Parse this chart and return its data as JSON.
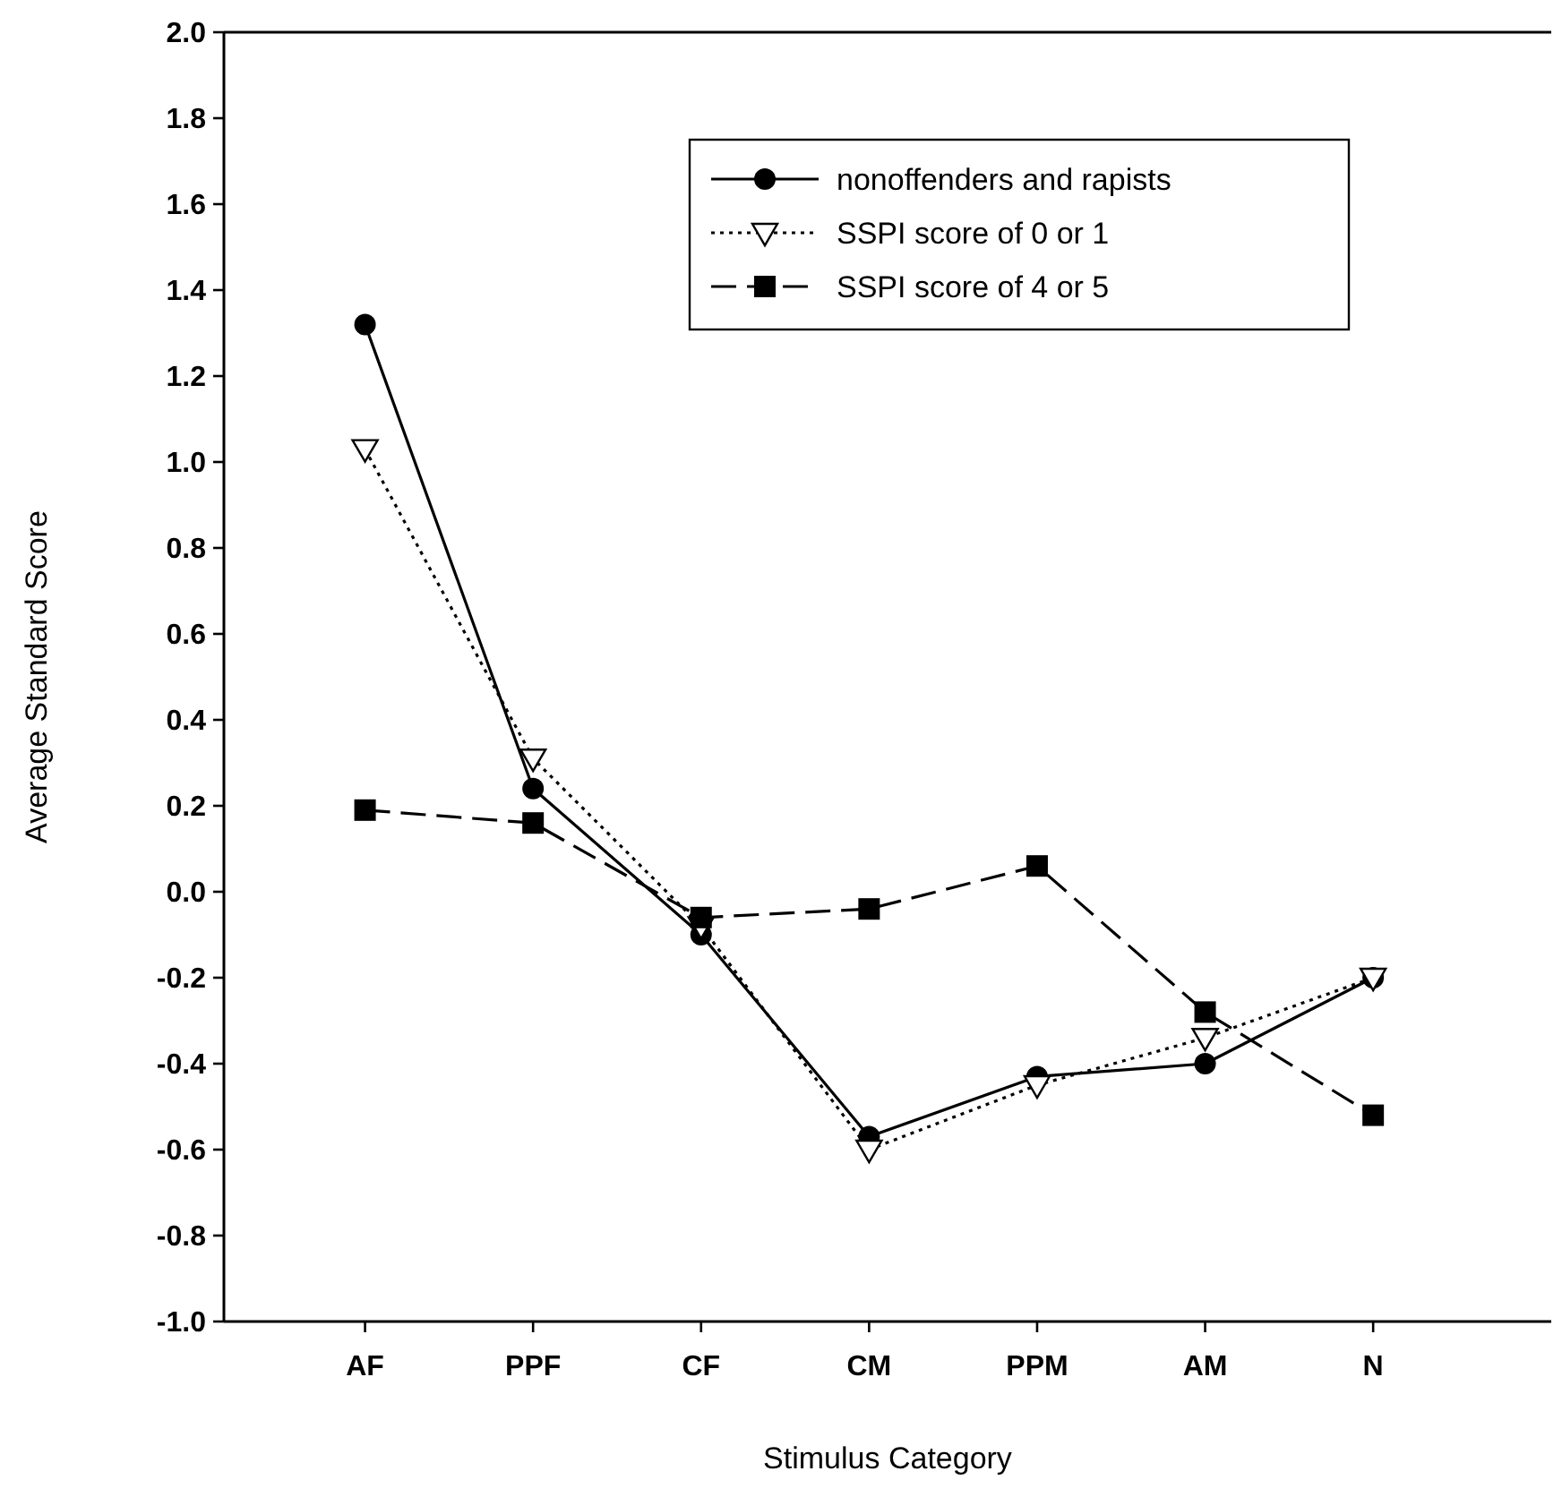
{
  "chart_data": {
    "type": "line",
    "xlabel": "Stimulus Category",
    "ylabel": "Average Standard Score",
    "categories": [
      "AF",
      "PPF",
      "CF",
      "CM",
      "PPM",
      "AM",
      "N"
    ],
    "series": [
      {
        "name": "nonoffenders and rapists",
        "color": "#000000",
        "marker": "circle",
        "line_style": "solid",
        "values": [
          1.32,
          0.24,
          -0.1,
          -0.57,
          -0.43,
          -0.4,
          -0.2
        ]
      },
      {
        "name": "SSPI score of 0 or 1",
        "color": "#000000",
        "marker": "triangle",
        "line_style": "dotted",
        "values": [
          1.03,
          0.31,
          -0.08,
          -0.6,
          -0.45,
          -0.34,
          -0.2
        ]
      },
      {
        "name": "SSPI score of 4 or 5",
        "color": "#000000",
        "marker": "square",
        "line_style": "dashed",
        "values": [
          0.19,
          0.16,
          -0.06,
          -0.04,
          0.06,
          -0.28,
          -0.52
        ]
      }
    ],
    "ylim": [
      -1,
      2
    ],
    "yticks": [
      {
        "value": -1,
        "label": "-1.0"
      },
      {
        "value": -0.8,
        "label": "-0.8"
      },
      {
        "value": -0.6,
        "label": "-0.6"
      },
      {
        "value": -0.4,
        "label": "-0.4"
      },
      {
        "value": -0.2,
        "label": "-0.2"
      },
      {
        "value": 0,
        "label": "0.0"
      },
      {
        "value": 0.2,
        "label": "0.2"
      },
      {
        "value": 0.4,
        "label": "0.4"
      },
      {
        "value": 0.6,
        "label": "0.6"
      },
      {
        "value": 0.8,
        "label": "0.8"
      },
      {
        "value": 1,
        "label": "1.0"
      },
      {
        "value": 1.2,
        "label": "1.2"
      },
      {
        "value": 1.4,
        "label": "1.4"
      },
      {
        "value": 1.6,
        "label": "1.6"
      },
      {
        "value": 1.8,
        "label": "1.8"
      },
      {
        "value": 2,
        "label": "2.0"
      }
    ],
    "grid": false,
    "legend": "top right"
  }
}
